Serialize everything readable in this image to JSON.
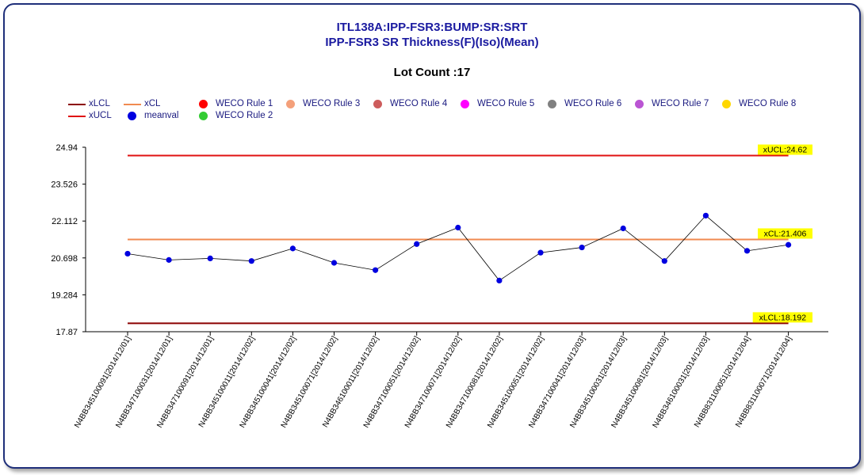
{
  "title_line1": "ITL138A:IPP-FSR3:BUMP:SR:SRT",
  "title_line2": "IPP-FSR3 SR Thickness(F)(Iso)(Mean)",
  "lot_count": "Lot Count :17",
  "legend": [
    {
      "label": "xLCL",
      "kind": "line",
      "color": "#8b0000"
    },
    {
      "label": "xUCL",
      "kind": "line",
      "color": "#e01010"
    },
    {
      "label": "xCL",
      "kind": "line",
      "color": "#f08a50"
    },
    {
      "label": "meanval",
      "kind": "dot",
      "color": "#0000e0"
    },
    {
      "label": "WECO Rule 1",
      "kind": "dot",
      "color": "#ff0000"
    },
    {
      "label": "WECO Rule 2",
      "kind": "dot",
      "color": "#33cc33"
    },
    {
      "label": "WECO Rule 3",
      "kind": "dot",
      "color": "#f4a07a"
    },
    {
      "label": "WECO Rule 4",
      "kind": "dot",
      "color": "#cd5c5c"
    },
    {
      "label": "WECO Rule 5",
      "kind": "dot",
      "color": "#ff00ff"
    },
    {
      "label": "WECO Rule 6",
      "kind": "dot",
      "color": "#808080"
    },
    {
      "label": "WECO Rule 7",
      "kind": "dot",
      "color": "#ba55d3"
    },
    {
      "label": "WECO Rule 8",
      "kind": "dot",
      "color": "#ffd700"
    }
  ],
  "chart_data": {
    "type": "line",
    "ylim": [
      17.87,
      24.94
    ],
    "yticks": [
      "17.87",
      "19.284",
      "20.698",
      "22.112",
      "23.526",
      "24.94"
    ],
    "categories": [
      "N4BB345100091[2014/12/01]",
      "N4BB347100031[2014/12/01]",
      "N4BB347100091[2014/12/01]",
      "N4BB345100011[2014/12/02]",
      "N4BB345100041[2014/12/02]",
      "N4BB345100071[2014/12/02]",
      "N4BB346100011[2014/12/02]",
      "N4BB347100051[2014/12/02]",
      "N4BB347100071[2014/12/02]",
      "N4BB347100081[2014/12/02]",
      "N4BB345100051[2014/12/02]",
      "N4BB347100041[2014/12/03]",
      "N4BB345100031[2014/12/03]",
      "N4BB345100081[2014/12/03]",
      "N4BB346100031[2014/12/03]",
      "N4BB831100051[2014/12/04]",
      "N4BB831100071[2014/12/04]"
    ],
    "series": [
      {
        "name": "meanval",
        "color": "#0000e0",
        "values": [
          20.86,
          20.62,
          20.68,
          20.58,
          21.06,
          20.51,
          20.23,
          21.23,
          21.86,
          19.83,
          20.9,
          21.1,
          21.83,
          20.58,
          22.32,
          20.97,
          21.2
        ]
      }
    ],
    "limits": [
      {
        "name": "xUCL",
        "value": 24.62,
        "label": "xUCL:24.62",
        "color": "#e01010"
      },
      {
        "name": "xCL",
        "value": 21.406,
        "label": "xCL:21.406",
        "color": "#f08a50"
      },
      {
        "name": "xLCL",
        "value": 18.192,
        "label": "xLCL:18.192",
        "color": "#8b0000"
      }
    ]
  }
}
